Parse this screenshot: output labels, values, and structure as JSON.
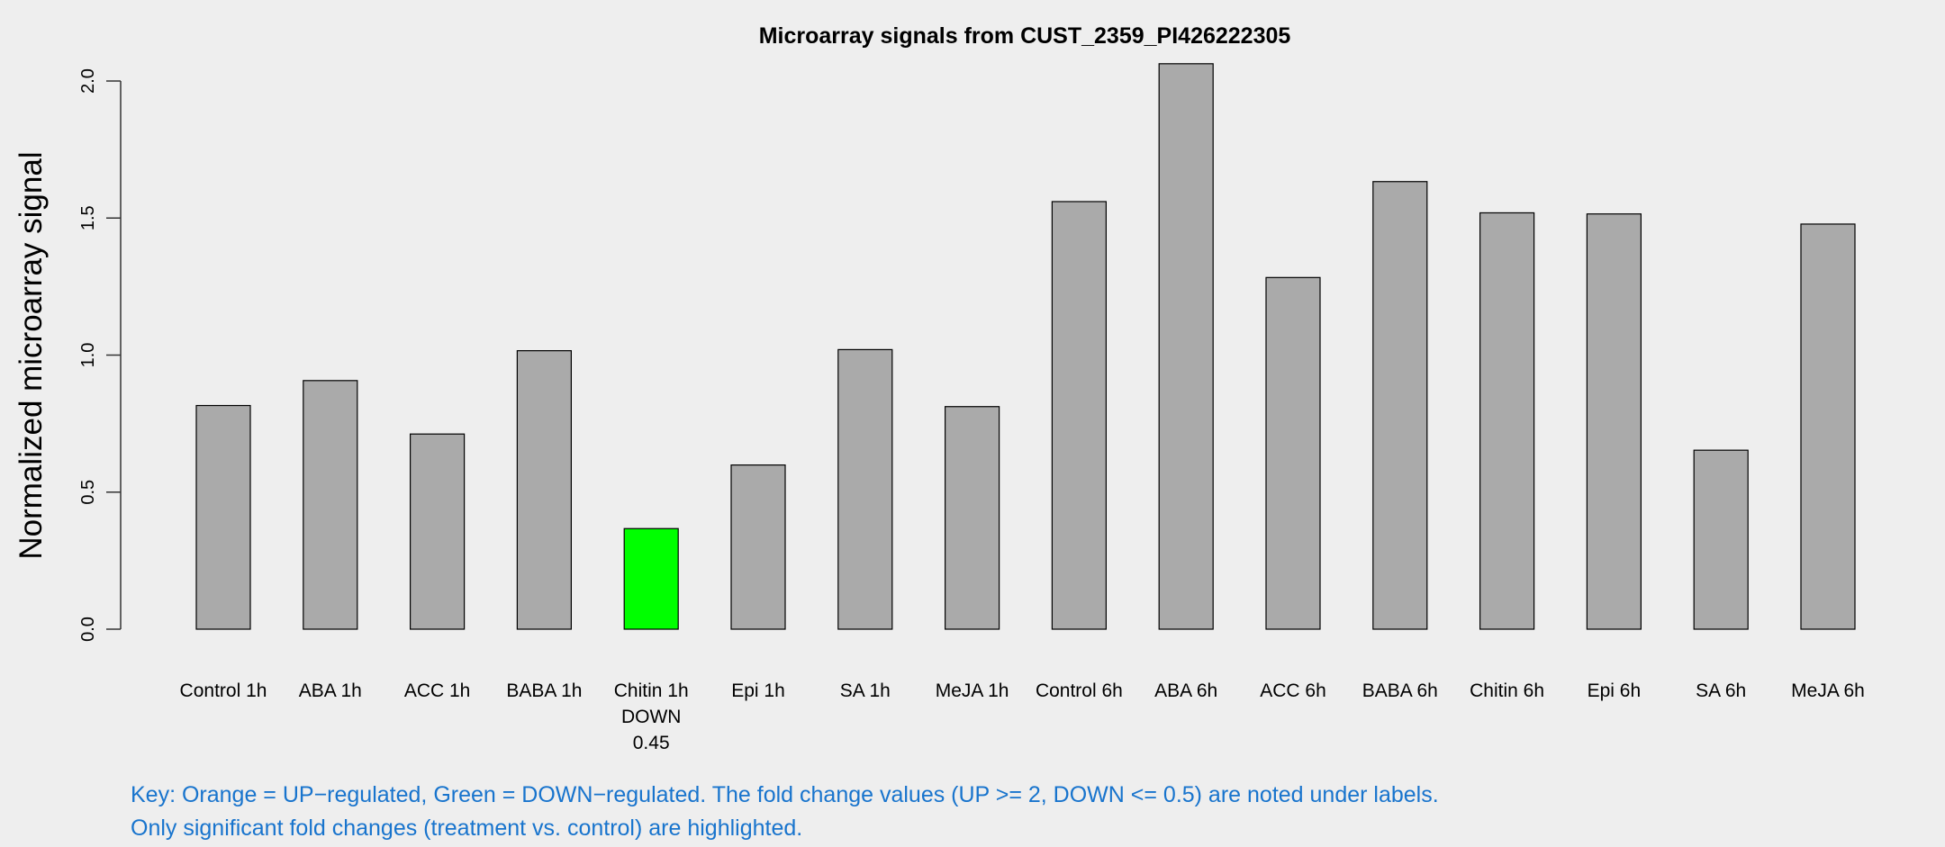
{
  "chart_data": {
    "type": "bar",
    "title": "Microarray signals from CUST_2359_PI426222305",
    "xlabel": "",
    "ylabel": "Normalized microarray signal",
    "ylim": [
      0,
      2.0
    ],
    "yticks": [
      "0.0",
      "0.5",
      "1.0",
      "1.5",
      "2.0"
    ],
    "ytick_values": [
      0,
      0.5,
      1.0,
      1.5,
      2.0
    ],
    "grid": false,
    "categories": [
      "Control 1h",
      "ABA 1h",
      "ACC 1h",
      "BABA 1h",
      "Chitin 1h",
      "Epi 1h",
      "SA 1h",
      "MeJA 1h",
      "Control 6h",
      "ABA 6h",
      "ACC 6h",
      "BABA 6h",
      "Chitin 6h",
      "Epi 6h",
      "SA 6h",
      "MeJA 6h"
    ],
    "values": [
      0.816,
      0.907,
      0.712,
      1.016,
      0.367,
      0.599,
      1.02,
      0.812,
      1.56,
      2.063,
      1.283,
      1.633,
      1.519,
      1.515,
      0.653,
      1.478
    ],
    "bar_colors": [
      "#aaaaaa",
      "#aaaaaa",
      "#aaaaaa",
      "#aaaaaa",
      "#00ff00",
      "#aaaaaa",
      "#aaaaaa",
      "#aaaaaa",
      "#aaaaaa",
      "#aaaaaa",
      "#aaaaaa",
      "#aaaaaa",
      "#aaaaaa",
      "#aaaaaa",
      "#aaaaaa",
      "#aaaaaa"
    ],
    "annotations": [
      {
        "category": "Chitin 1h",
        "direction": "DOWN",
        "fold_change": "0.45"
      }
    ]
  },
  "key": {
    "line1": "Key: Orange = UP−regulated, Green = DOWN−regulated. The fold change values (UP >= 2, DOWN <= 0.5) are noted under labels.",
    "line2": "Only significant fold changes (treatment vs. control) are highlighted.",
    "color": "#1874cd"
  }
}
